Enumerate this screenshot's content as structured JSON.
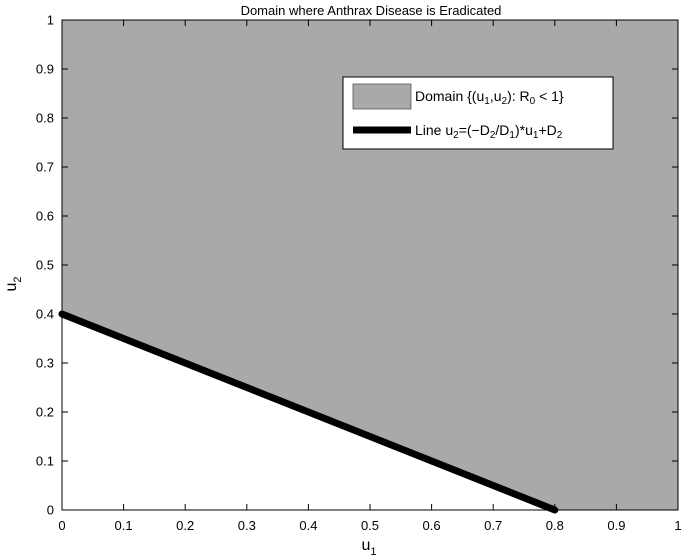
{
  "chart_data": {
    "type": "area",
    "title": "Domain where Anthrax Disease is Eradicated",
    "xlabel": {
      "base": "u",
      "sub": "1"
    },
    "ylabel": {
      "base": "u",
      "sub": "2"
    },
    "xlim": [
      0,
      1
    ],
    "ylim": [
      0,
      1
    ],
    "xticks": [
      "0",
      "0.1",
      "0.2",
      "0.3",
      "0.4",
      "0.5",
      "0.6",
      "0.7",
      "0.8",
      "0.9",
      "1"
    ],
    "yticks": [
      "0",
      "0.1",
      "0.2",
      "0.3",
      "0.4",
      "0.5",
      "0.6",
      "0.7",
      "0.8",
      "0.9",
      "1"
    ],
    "grid": false,
    "legend_position": "top-right",
    "legend": [
      {
        "kind": "patch",
        "color": "#a9a9a9",
        "segments": [
          [
            "Domain {(u",
            ""
          ],
          [
            "1",
            "sub"
          ],
          [
            ",u",
            ""
          ],
          [
            "2",
            "sub"
          ],
          [
            "): R",
            ""
          ],
          [
            "0",
            "sub"
          ],
          [
            " < 1}",
            ""
          ]
        ]
      },
      {
        "kind": "line",
        "color": "#000000",
        "segments": [
          [
            "Line u",
            ""
          ],
          [
            "2",
            "sub"
          ],
          [
            "=(−D",
            ""
          ],
          [
            "2",
            "sub"
          ],
          [
            "/D",
            ""
          ],
          [
            "1",
            "sub"
          ],
          [
            ")*u",
            ""
          ],
          [
            "1",
            "sub"
          ],
          [
            "+D",
            ""
          ],
          [
            "2",
            "sub"
          ]
        ]
      }
    ],
    "series": [
      {
        "kind": "region",
        "color": "#a9a9a9",
        "boundary": [
          [
            0,
            0.4
          ],
          [
            0.8,
            0
          ],
          [
            1,
            0
          ],
          [
            1,
            1
          ],
          [
            0,
            1
          ]
        ]
      },
      {
        "kind": "line",
        "color": "#000000",
        "x": [
          0,
          0.8
        ],
        "y": [
          0.4,
          0
        ]
      }
    ]
  }
}
